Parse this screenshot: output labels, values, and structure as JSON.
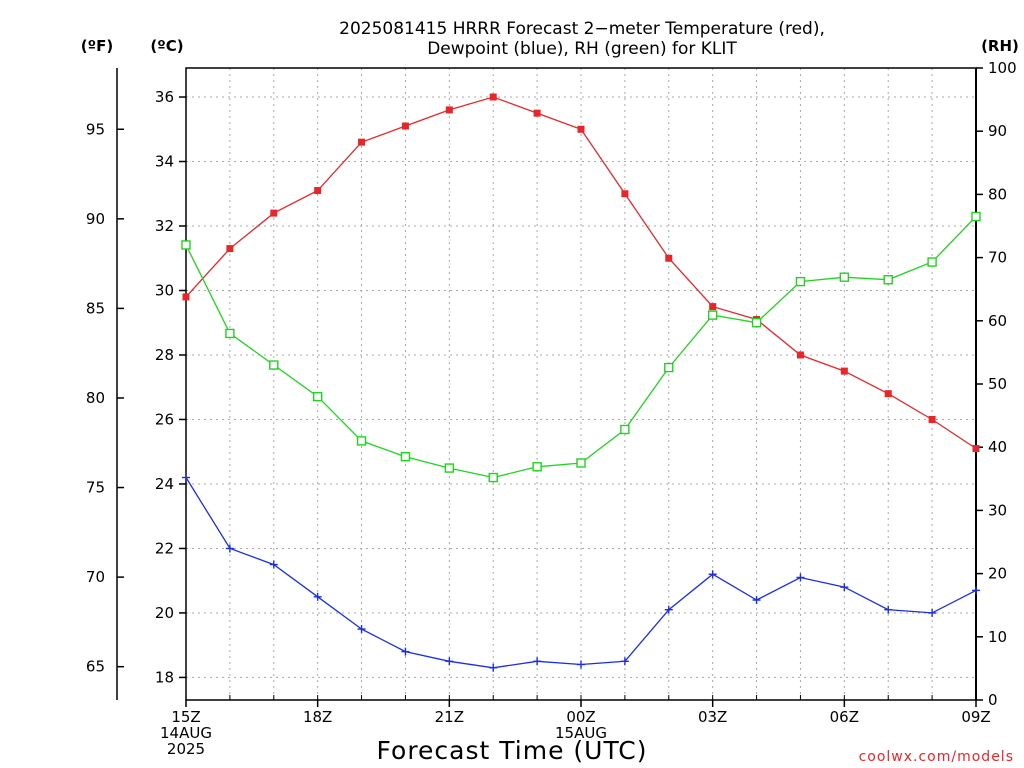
{
  "title": {
    "line1": "2025081415 HRRR Forecast 2−meter Temperature (red),",
    "line2": "Dewpoint (blue), RH (green) for KLIT"
  },
  "units": {
    "fahrenheit": "(ºF)",
    "celsius": "(ºC)",
    "rh": "(RH)"
  },
  "credit": "coolwx.com/models",
  "chart_data": {
    "type": "line",
    "title": "2025081415 HRRR Forecast 2−meter Temperature (red), Dewpoint (blue), RH (green) for KLIT",
    "xlabel": "Forecast Time (UTC)",
    "x": [
      "15Z 14AUG 2025",
      "16Z",
      "17Z",
      "18Z",
      "19Z",
      "20Z",
      "21Z",
      "22Z",
      "23Z",
      "00Z 15AUG",
      "01Z",
      "02Z",
      "03Z",
      "04Z",
      "05Z",
      "06Z",
      "07Z",
      "08Z",
      "09Z"
    ],
    "x_ticks": [
      {
        "label": [
          "15Z",
          "14AUG",
          "2025"
        ],
        "index": 0
      },
      {
        "label": [
          "18Z"
        ],
        "index": 3
      },
      {
        "label": [
          "21Z"
        ],
        "index": 6
      },
      {
        "label": [
          "00Z",
          "15AUG"
        ],
        "index": 9
      },
      {
        "label": [
          "03Z"
        ],
        "index": 12
      },
      {
        "label": [
          "06Z"
        ],
        "index": 15
      },
      {
        "label": [
          "09Z"
        ],
        "index": 18
      }
    ],
    "y_celsius": {
      "ylim": [
        17.3,
        36.9
      ],
      "ticks": [
        18,
        20,
        22,
        24,
        26,
        28,
        30,
        32,
        34,
        36
      ]
    },
    "y_fahrenheit": {
      "ticks": [
        65,
        70,
        75,
        80,
        85,
        90,
        95
      ]
    },
    "y_rh": {
      "ylim": [
        0,
        100
      ],
      "ticks": [
        0,
        10,
        20,
        30,
        40,
        50,
        60,
        70,
        80,
        90,
        100
      ]
    },
    "grid": true,
    "series": [
      {
        "name": "Temperature",
        "axis": "celsius",
        "color": "#e8262a",
        "marker": "filled-square",
        "values": [
          29.8,
          31.3,
          32.4,
          33.1,
          34.6,
          35.1,
          35.6,
          36.0,
          35.5,
          35.0,
          33.0,
          31.0,
          29.5,
          29.1,
          28.0,
          27.5,
          26.8,
          26.0,
          25.1
        ]
      },
      {
        "name": "Dewpoint",
        "axis": "celsius",
        "color": "#1a2ee6",
        "marker": "plus",
        "values": [
          24.2,
          22.0,
          21.5,
          20.5,
          19.5,
          18.8,
          18.5,
          18.3,
          18.5,
          18.4,
          18.5,
          20.1,
          21.2,
          20.4,
          21.1,
          20.8,
          20.1,
          20.0,
          20.7
        ]
      },
      {
        "name": "RH",
        "axis": "rh",
        "color": "#1fd41f",
        "marker": "open-square",
        "values": [
          72,
          58,
          53,
          48,
          41,
          38.5,
          36.7,
          35.2,
          36.9,
          37.5,
          42.8,
          52.6,
          60.9,
          59.7,
          66.2,
          66.9,
          66.5,
          69.3,
          76.5
        ]
      }
    ]
  }
}
